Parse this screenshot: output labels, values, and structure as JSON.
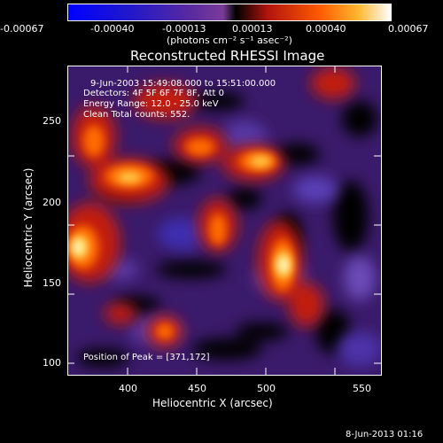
{
  "colorbar": {
    "tick_labels": [
      "-0.00067",
      "-0.00040",
      "-0.00013",
      "0.00013",
      "0.00040",
      "0.00067"
    ],
    "unit_label": "(photons cm⁻² s⁻¹ asec⁻²)",
    "colors": [
      "#0000ff",
      "#1a18d0",
      "#5a2aa0",
      "#7b3a9b",
      "#000000",
      "#c21a12",
      "#ff5500",
      "#ffb32c",
      "#ffffff"
    ]
  },
  "image": {
    "title": "Reconstructed RHESSI Image",
    "annotations": [
      "9-Jun-2003 15:49:08.000 to 15:51:00.000",
      "Detectors: 4F 5F 6F 7F 8F, Att 0",
      "Energy Range: 12.0 - 25.0 keV",
      "Clean    Total counts: 552."
    ],
    "peak_label": "Position of Peak = [371,172]"
  },
  "axes": {
    "x_label": "Heliocentric X (arcsec)",
    "y_label": "Heliocentric Y (arcsec)",
    "x_ticks": [
      "400",
      "450",
      "500",
      "550"
    ],
    "y_ticks": [
      "100",
      "150",
      "200",
      "250"
    ]
  },
  "footer": {
    "date": "8-Jun-2013 01:16"
  }
}
